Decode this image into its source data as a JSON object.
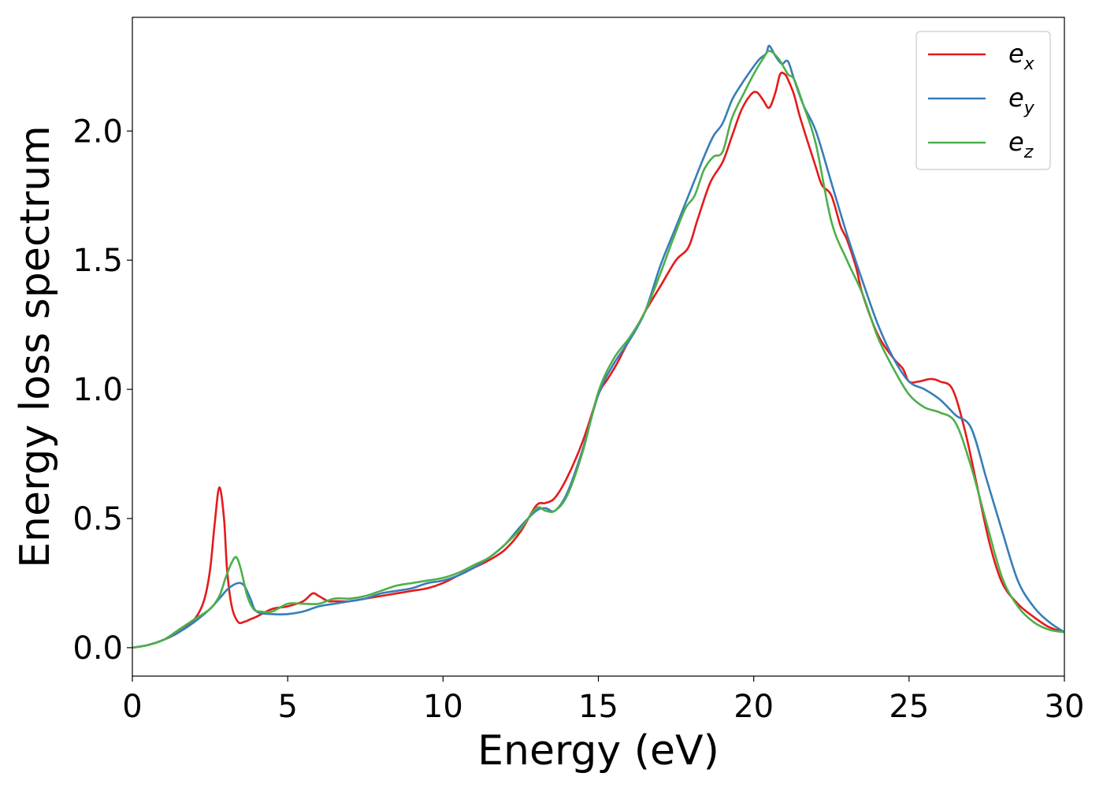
{
  "chart_data": {
    "type": "line",
    "title": "",
    "xlabel": "Energy (eV)",
    "ylabel": "Energy loss spectrum",
    "xlim": [
      0,
      30
    ],
    "ylim": [
      -0.11,
      2.44
    ],
    "xticks": [
      0,
      5,
      10,
      15,
      20,
      25,
      30
    ],
    "xtick_labels": [
      "0",
      "5",
      "10",
      "15",
      "20",
      "25",
      "30"
    ],
    "yticks": [
      0.0,
      0.5,
      1.0,
      1.5,
      2.0
    ],
    "ytick_labels": [
      "0.0",
      "0.5",
      "1.0",
      "1.5",
      "2.0"
    ],
    "grid": false,
    "legend_position": "top-right",
    "series": [
      {
        "name": "e",
        "subscript": "x",
        "color": "#e41a1c",
        "x": [
          0,
          0.5,
          1,
          1.5,
          2,
          2.3,
          2.5,
          2.65,
          2.8,
          2.95,
          3.05,
          3.2,
          3.4,
          3.6,
          3.8,
          4,
          4.5,
          5,
          5.5,
          5.8,
          6,
          6.3,
          6.5,
          7,
          7.5,
          8,
          8.5,
          9,
          9.5,
          10,
          10.5,
          11,
          11.5,
          12,
          12.5,
          13,
          13.3,
          13.6,
          14,
          14.5,
          15,
          15.3,
          15.6,
          15.9,
          16.2,
          16.5,
          17,
          17.5,
          17.9,
          18.2,
          18.6,
          19,
          19.3,
          19.6,
          19.9,
          20.1,
          20.3,
          20.5,
          20.7,
          20.85,
          21,
          21.1,
          21.3,
          21.5,
          22,
          22.2,
          22.5,
          22.8,
          23,
          23.3,
          23.5,
          24,
          24.5,
          24.8,
          25,
          25.3,
          25.7,
          26,
          26.4,
          26.8,
          27.2,
          27.6,
          28,
          28.5,
          29,
          29.5,
          30
        ],
        "values": [
          0.0,
          0.01,
          0.03,
          0.06,
          0.11,
          0.18,
          0.3,
          0.48,
          0.62,
          0.5,
          0.3,
          0.16,
          0.1,
          0.1,
          0.11,
          0.12,
          0.15,
          0.16,
          0.18,
          0.21,
          0.2,
          0.18,
          0.18,
          0.18,
          0.19,
          0.2,
          0.21,
          0.22,
          0.23,
          0.25,
          0.28,
          0.31,
          0.34,
          0.38,
          0.45,
          0.55,
          0.56,
          0.58,
          0.66,
          0.8,
          0.98,
          1.04,
          1.1,
          1.17,
          1.23,
          1.3,
          1.4,
          1.5,
          1.55,
          1.66,
          1.8,
          1.88,
          1.98,
          2.08,
          2.14,
          2.15,
          2.12,
          2.09,
          2.15,
          2.22,
          2.22,
          2.2,
          2.14,
          2.05,
          1.86,
          1.79,
          1.75,
          1.63,
          1.58,
          1.47,
          1.37,
          1.21,
          1.12,
          1.08,
          1.03,
          1.03,
          1.04,
          1.03,
          1.0,
          0.84,
          0.62,
          0.4,
          0.25,
          0.17,
          0.12,
          0.08,
          0.06
        ]
      },
      {
        "name": "e",
        "subscript": "y",
        "color": "#377eb8",
        "x": [
          0,
          0.5,
          1,
          1.5,
          2,
          2.5,
          2.8,
          3.1,
          3.4,
          3.6,
          3.8,
          4,
          4.5,
          5,
          5.5,
          6,
          6.5,
          7,
          7.5,
          8,
          8.5,
          9,
          9.5,
          10,
          10.5,
          11,
          11.5,
          12,
          12.5,
          13,
          13.3,
          13.6,
          14,
          14.5,
          15,
          15.5,
          16,
          16.5,
          17,
          17.5,
          18,
          18.4,
          18.7,
          19,
          19.3,
          19.6,
          20,
          20.2,
          20.4,
          20.5,
          20.7,
          20.9,
          21.1,
          21.3,
          21.6,
          22,
          22.5,
          23,
          23.5,
          24,
          24.5,
          25,
          25.5,
          26,
          26.5,
          27,
          27.5,
          28,
          28.5,
          29,
          29.5,
          30
        ],
        "values": [
          0.0,
          0.01,
          0.03,
          0.06,
          0.1,
          0.15,
          0.19,
          0.23,
          0.25,
          0.24,
          0.19,
          0.14,
          0.13,
          0.13,
          0.14,
          0.16,
          0.17,
          0.18,
          0.19,
          0.21,
          0.22,
          0.23,
          0.25,
          0.26,
          0.28,
          0.31,
          0.35,
          0.4,
          0.47,
          0.53,
          0.54,
          0.53,
          0.6,
          0.77,
          0.98,
          1.1,
          1.19,
          1.3,
          1.48,
          1.63,
          1.78,
          1.9,
          1.98,
          2.03,
          2.12,
          2.18,
          2.25,
          2.28,
          2.3,
          2.33,
          2.29,
          2.26,
          2.27,
          2.2,
          2.1,
          2.0,
          1.8,
          1.6,
          1.42,
          1.25,
          1.12,
          1.03,
          1.0,
          0.96,
          0.9,
          0.85,
          0.65,
          0.45,
          0.26,
          0.16,
          0.1,
          0.06
        ]
      },
      {
        "name": "e",
        "subscript": "z",
        "color": "#4daf4a",
        "x": [
          0,
          0.5,
          1,
          1.5,
          2,
          2.5,
          2.8,
          3.0,
          3.2,
          3.35,
          3.5,
          3.7,
          3.9,
          4.1,
          4.5,
          5,
          5.5,
          6,
          6.5,
          7,
          7.5,
          8,
          8.5,
          9,
          9.5,
          10,
          10.5,
          11,
          11.5,
          12,
          12.5,
          13,
          13.3,
          13.6,
          14,
          14.5,
          15,
          15.5,
          16,
          16.5,
          17,
          17.4,
          17.8,
          18.1,
          18.4,
          18.7,
          19,
          19.3,
          19.7,
          20,
          20.3,
          20.5,
          20.8,
          21.1,
          21.3,
          21.6,
          22,
          22.5,
          23,
          23.5,
          24,
          24.5,
          25,
          25.5,
          26,
          26.5,
          27,
          27.5,
          28,
          28.5,
          29,
          29.5,
          30
        ],
        "values": [
          0.0,
          0.01,
          0.03,
          0.07,
          0.11,
          0.15,
          0.2,
          0.27,
          0.33,
          0.35,
          0.3,
          0.2,
          0.15,
          0.14,
          0.14,
          0.17,
          0.17,
          0.17,
          0.19,
          0.19,
          0.2,
          0.22,
          0.24,
          0.25,
          0.26,
          0.27,
          0.29,
          0.32,
          0.35,
          0.4,
          0.46,
          0.54,
          0.53,
          0.53,
          0.59,
          0.76,
          0.99,
          1.12,
          1.2,
          1.3,
          1.45,
          1.58,
          1.7,
          1.75,
          1.85,
          1.9,
          1.92,
          2.05,
          2.15,
          2.22,
          2.28,
          2.31,
          2.28,
          2.22,
          2.2,
          2.1,
          1.95,
          1.65,
          1.5,
          1.37,
          1.2,
          1.08,
          0.98,
          0.93,
          0.91,
          0.87,
          0.7,
          0.48,
          0.27,
          0.16,
          0.1,
          0.07,
          0.06
        ]
      }
    ]
  }
}
